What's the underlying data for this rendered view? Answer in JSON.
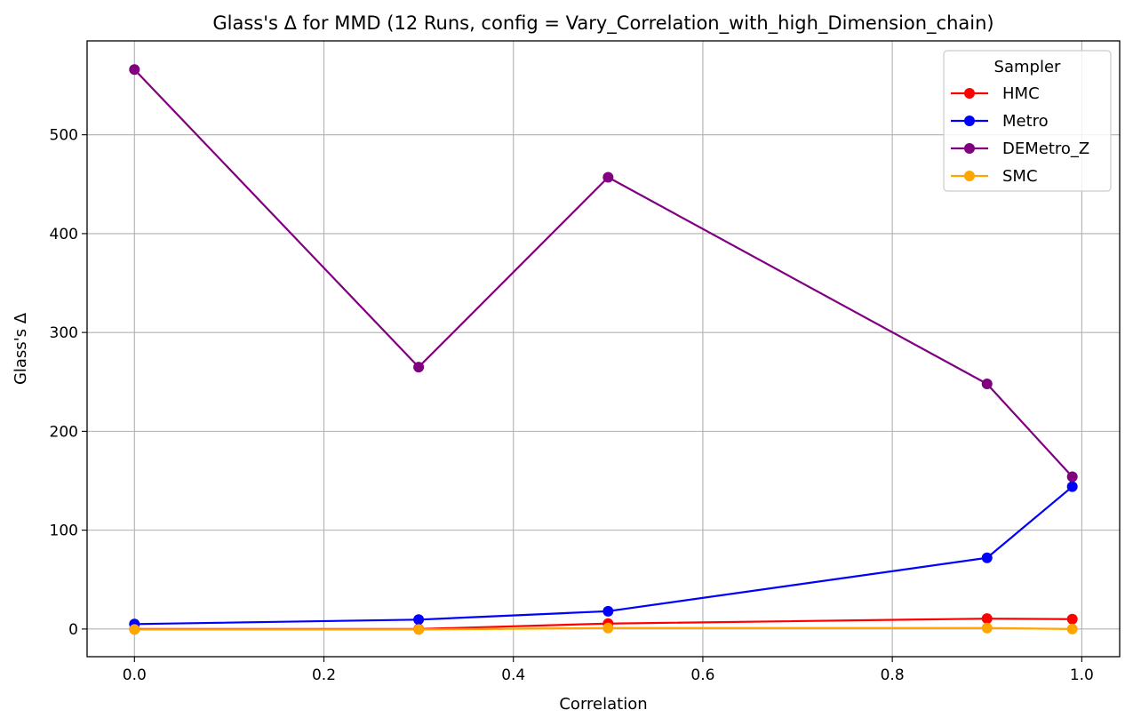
{
  "chart_data": {
    "type": "line",
    "title": "Glass's Δ for MMD (12 Runs, config = Vary_Correlation_with_high_Dimension_chain)",
    "xlabel": "Correlation",
    "ylabel": "Glass's Δ",
    "xlim": [
      -0.05,
      1.04
    ],
    "ylim": [
      -28,
      595
    ],
    "xticks": [
      0.0,
      0.2,
      0.4,
      0.6,
      0.8,
      1.0
    ],
    "xtick_labels": [
      "0.0",
      "0.2",
      "0.4",
      "0.6",
      "0.8",
      "1.0"
    ],
    "yticks": [
      0,
      100,
      200,
      300,
      400,
      500
    ],
    "ytick_labels": [
      "0",
      "100",
      "200",
      "300",
      "400",
      "500"
    ],
    "grid": true,
    "legend": {
      "title": "Sampler",
      "placement": "top-right"
    },
    "x": [
      0.0,
      0.3,
      0.5,
      0.9,
      0.99
    ],
    "series": [
      {
        "name": "HMC",
        "color": "#ff0000",
        "values": [
          0,
          0,
          5.5,
          10.5,
          10
        ]
      },
      {
        "name": "Metro",
        "color": "#0000ff",
        "values": [
          5,
          9.5,
          18,
          72,
          144
        ]
      },
      {
        "name": "DEMetro_Z",
        "color": "#800080",
        "values": [
          566,
          265,
          457,
          248,
          154
        ]
      },
      {
        "name": "SMC",
        "color": "#ffa500",
        "values": [
          -0.5,
          -0.5,
          1,
          1,
          0
        ]
      }
    ]
  }
}
